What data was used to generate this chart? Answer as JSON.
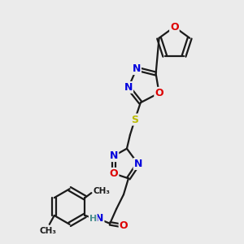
{
  "bg_color": "#ebebeb",
  "atom_colors": {
    "C": "#1a1a1a",
    "N": "#0000dd",
    "O": "#dd0000",
    "S": "#bbbb00",
    "H": "#4a9090"
  },
  "bond_color": "#1a1a1a",
  "figsize": [
    3.0,
    3.0
  ],
  "dpi": 100
}
